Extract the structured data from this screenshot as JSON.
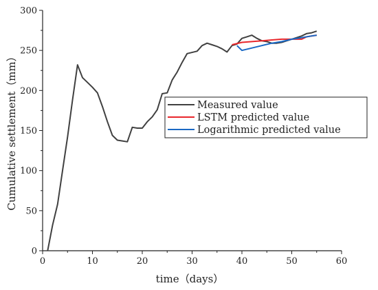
{
  "chart_data": {
    "type": "line",
    "xlabel": "time（days）",
    "ylabel": "Cumulative settlement（mm）",
    "xlim": [
      0,
      60
    ],
    "ylim": [
      0,
      300
    ],
    "xticks": [
      0,
      10,
      20,
      30,
      40,
      50,
      60
    ],
    "yticks": [
      0,
      50,
      100,
      150,
      200,
      250,
      300
    ],
    "grid": false,
    "legend_position": "right, middle",
    "series": [
      {
        "name": "Measured value",
        "color": "#404040",
        "x": [
          1,
          2,
          3,
          4,
          5,
          6,
          7,
          8,
          9,
          10,
          11,
          12,
          13,
          14,
          15,
          16,
          17,
          18,
          19,
          20,
          21,
          22,
          23,
          24,
          25,
          26,
          27,
          28,
          29,
          31,
          32,
          33,
          34,
          35,
          36,
          37,
          38,
          39,
          40,
          41,
          42,
          43,
          44,
          45,
          46,
          47,
          48,
          49,
          50,
          51,
          52,
          53,
          54,
          55
        ],
        "values": [
          0,
          32,
          58,
          100,
          142,
          188,
          232,
          216,
          210,
          204,
          197,
          180,
          161,
          144,
          138,
          137,
          136,
          154,
          153,
          153,
          161,
          167,
          176,
          196,
          197,
          213,
          223,
          235,
          246,
          249,
          256,
          259,
          257,
          255,
          252,
          248,
          256,
          258,
          265,
          267,
          269,
          265,
          262,
          261,
          259,
          259,
          260,
          262,
          264,
          266,
          268,
          271,
          272,
          274
        ]
      },
      {
        "name": "LSTM predicted value",
        "color": "#e8262b",
        "x": [
          38,
          40,
          42,
          44,
          46,
          48,
          50,
          52,
          53,
          55
        ],
        "values": [
          257,
          260,
          261,
          262,
          263,
          264,
          264,
          264,
          267,
          269
        ]
      },
      {
        "name": "Logarithmic predicted value",
        "color": "#1a68c4",
        "x": [
          39,
          40,
          42,
          44,
          46,
          48,
          50,
          52,
          54,
          55
        ],
        "values": [
          256,
          250,
          253,
          256,
          259,
          261,
          264,
          266,
          268,
          269
        ]
      }
    ]
  }
}
